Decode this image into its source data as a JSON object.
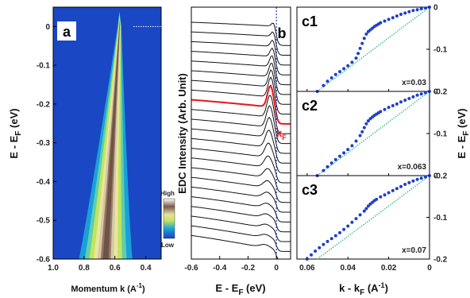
{
  "chart_data": [
    {
      "panel": "a",
      "type": "heatmap",
      "xlabel": "Momentum k (A",
      "xlabel_sup": "-1",
      "xlabel_tail": ")",
      "ylabel": "E - E",
      "ylabel_sub": "F",
      "ylabel_tail": " (eV)",
      "xlim": [
        1.0,
        0.3
      ],
      "ylim": [
        -0.6,
        0.05
      ],
      "xticks": [
        "1.0",
        "0.8",
        "0.6",
        "0.4"
      ],
      "xtick_values": [
        1.0,
        0.8,
        0.6,
        0.4
      ],
      "yticks": [
        "0",
        "-0.1",
        "-0.2",
        "-0.3",
        "-0.4",
        "-0.5",
        "-0.6"
      ],
      "ytick_values": [
        0,
        -0.1,
        -0.2,
        -0.3,
        -0.4,
        -0.5,
        -0.6
      ],
      "colorbar_labels": [
        "High",
        "Low"
      ],
      "dispersion": {
        "k_at_EF": 0.57,
        "k_at_bottom": 0.66,
        "width_at_EF": 0.02,
        "width_at_bottom": 0.28
      }
    },
    {
      "panel": "b",
      "type": "line",
      "xlabel": "E - E",
      "xlabel_sub": "F",
      "xlabel_tail": " (eV)",
      "ylabel": "EDC Intensity (Arb. Unit)",
      "xlim": [
        -0.6,
        0.1
      ],
      "xticks": [
        "-0.6",
        "-0.4",
        "-0.2",
        "0"
      ],
      "xtick_values": [
        -0.6,
        -0.4,
        -0.2,
        0
      ],
      "n_curves": 23,
      "highlight_index": 8,
      "highlight_label": "k",
      "highlight_label_sub": "F",
      "colors": {
        "curve": "#111111",
        "highlight": "#e8141c",
        "ef_line": "#1f3fb5"
      }
    },
    {
      "panel": "c",
      "type": "scatter",
      "xlabel": "k - k",
      "xlabel_sub": "F",
      "xlabel_tail": " (A",
      "xlabel_sup": "-1",
      "xlabel_tail2": ")",
      "ylabel": "E - E",
      "ylabel_sub": "F",
      "ylabel_tail": " (eV)",
      "xlim": [
        0.065,
        0.0
      ],
      "ylim": [
        -0.2,
        0.0
      ],
      "xticks": [
        "0.06",
        "0.04",
        "0.02",
        "0"
      ],
      "xtick_values": [
        0.06,
        0.04,
        0.02,
        0.0
      ],
      "yticks": [
        "0",
        "-0.1",
        "-0.2"
      ],
      "ytick_values": [
        0,
        -0.1,
        -0.2
      ],
      "colors": {
        "points": "#1f3fcc",
        "reference": "#2eb88a"
      },
      "reference_line": {
        "x": [
          0.055,
          0.0
        ],
        "y": [
          -0.2,
          0.0
        ]
      },
      "panels": [
        {
          "label": "c1",
          "doping": "x=0.03",
          "x": [
            0.055,
            0.052,
            0.05,
            0.048,
            0.046,
            0.044,
            0.042,
            0.04,
            0.038,
            0.036,
            0.035,
            0.034,
            0.033,
            0.032,
            0.031,
            0.03,
            0.029,
            0.028,
            0.027,
            0.026,
            0.025,
            0.024,
            0.022,
            0.02,
            0.018,
            0.016,
            0.014,
            0.012,
            0.01,
            0.008,
            0.006,
            0.004,
            0.002,
            0.0
          ],
          "y": [
            -0.2,
            -0.186,
            -0.176,
            -0.168,
            -0.16,
            -0.153,
            -0.146,
            -0.139,
            -0.131,
            -0.121,
            -0.11,
            -0.098,
            -0.086,
            -0.074,
            -0.064,
            -0.058,
            -0.054,
            -0.05,
            -0.046,
            -0.043,
            -0.04,
            -0.037,
            -0.033,
            -0.029,
            -0.025,
            -0.021,
            -0.017,
            -0.014,
            -0.011,
            -0.008,
            -0.006,
            -0.004,
            -0.002,
            0.0
          ]
        },
        {
          "label": "c2",
          "doping": "x=0.063",
          "x": [
            0.055,
            0.052,
            0.05,
            0.048,
            0.046,
            0.044,
            0.042,
            0.04,
            0.038,
            0.036,
            0.034,
            0.033,
            0.032,
            0.031,
            0.03,
            0.029,
            0.028,
            0.027,
            0.026,
            0.025,
            0.024,
            0.022,
            0.02,
            0.018,
            0.016,
            0.014,
            0.012,
            0.01,
            0.008,
            0.006,
            0.004,
            0.002,
            0.0
          ],
          "y": [
            -0.2,
            -0.188,
            -0.179,
            -0.17,
            -0.162,
            -0.154,
            -0.146,
            -0.138,
            -0.129,
            -0.118,
            -0.105,
            -0.096,
            -0.086,
            -0.077,
            -0.07,
            -0.065,
            -0.061,
            -0.057,
            -0.054,
            -0.051,
            -0.048,
            -0.043,
            -0.038,
            -0.034,
            -0.03,
            -0.025,
            -0.021,
            -0.017,
            -0.013,
            -0.009,
            -0.006,
            -0.003,
            0.0
          ]
        },
        {
          "label": "c3",
          "doping": "x=0.07",
          "x": [
            0.06,
            0.058,
            0.056,
            0.054,
            0.052,
            0.05,
            0.048,
            0.046,
            0.044,
            0.042,
            0.04,
            0.038,
            0.036,
            0.034,
            0.032,
            0.031,
            0.03,
            0.029,
            0.028,
            0.027,
            0.026,
            0.024,
            0.022,
            0.02,
            0.018,
            0.016,
            0.014,
            0.012,
            0.01,
            0.008,
            0.006,
            0.004,
            0.002,
            0.0
          ],
          "y": [
            -0.2,
            -0.19,
            -0.181,
            -0.173,
            -0.165,
            -0.158,
            -0.151,
            -0.144,
            -0.137,
            -0.129,
            -0.121,
            -0.112,
            -0.103,
            -0.094,
            -0.085,
            -0.079,
            -0.073,
            -0.068,
            -0.064,
            -0.06,
            -0.057,
            -0.051,
            -0.046,
            -0.041,
            -0.036,
            -0.031,
            -0.026,
            -0.021,
            -0.017,
            -0.013,
            -0.009,
            -0.006,
            -0.003,
            0.0
          ]
        }
      ]
    }
  ]
}
